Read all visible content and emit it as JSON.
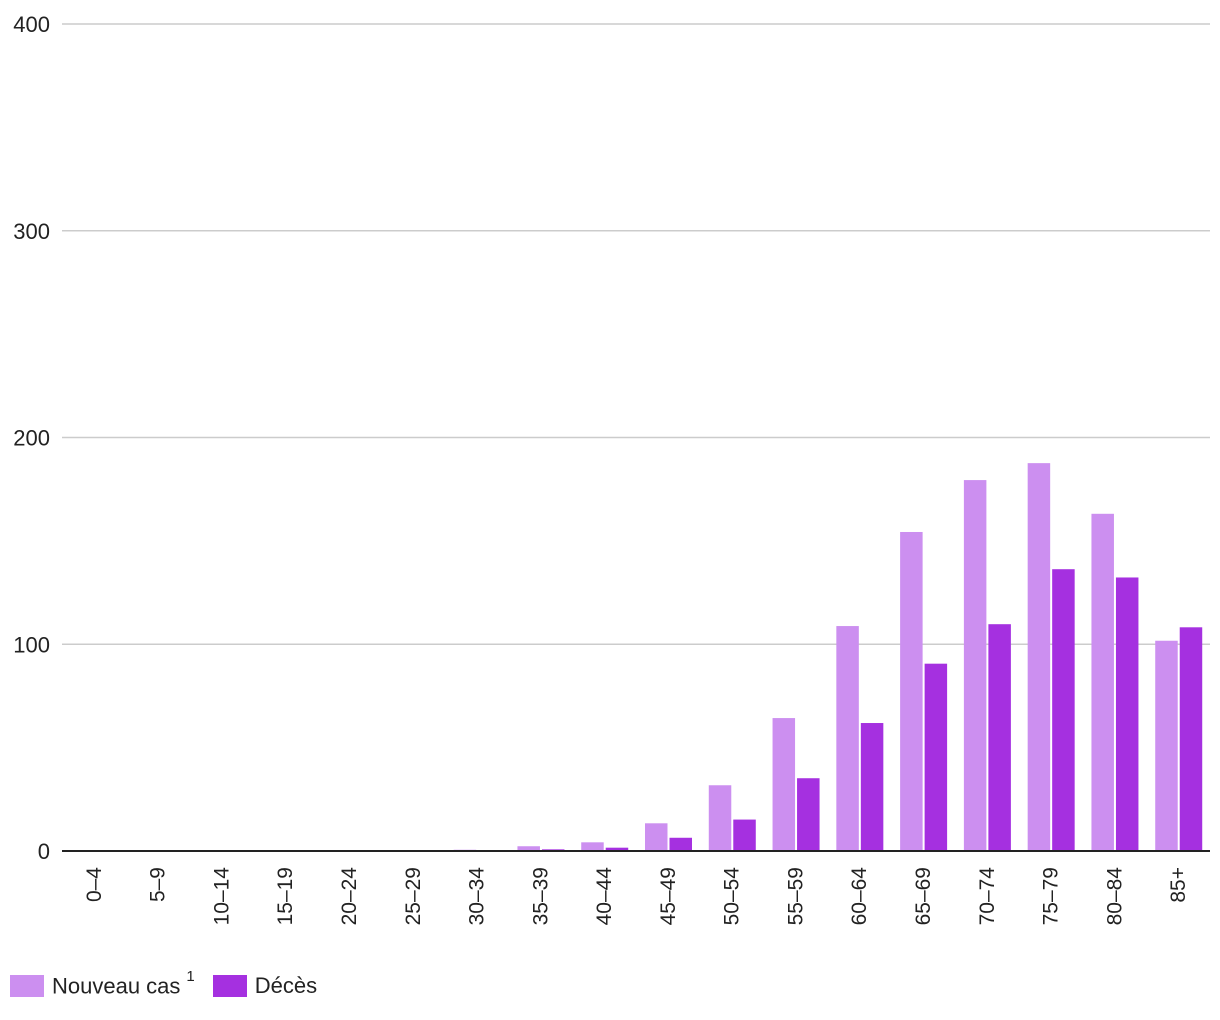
{
  "chart_data": {
    "type": "bar",
    "categories": [
      "0–4",
      "5–9",
      "10–14",
      "15–19",
      "20–24",
      "25–29",
      "30–34",
      "35–39",
      "40–44",
      "45–49",
      "50–54",
      "55–59",
      "60–64",
      "65–69",
      "70–74",
      "75–79",
      "80–84",
      "85+"
    ],
    "series": [
      {
        "name": "Nouveau cas",
        "name_superscript": "1",
        "color": "#cc8ff0",
        "values": [
          0,
          0,
          0,
          0,
          0,
          0.2,
          0.6,
          2.3,
          4.2,
          13.4,
          31.8,
          64.3,
          108.8,
          154.3,
          179.4,
          187.6,
          163.1,
          101.7
        ]
      },
      {
        "name": "Décès",
        "color": "#a530e0",
        "values": [
          0,
          0,
          0,
          0,
          0,
          0,
          0.1,
          0.8,
          1.6,
          6.4,
          15.2,
          35.2,
          61.9,
          90.6,
          109.7,
          136.3,
          132.3,
          108.2
        ]
      }
    ],
    "yticks": [
      0,
      100,
      200,
      300,
      400
    ],
    "ylim": [
      0,
      400
    ],
    "grid": true,
    "legend_position": "bottom-left",
    "title": "",
    "xlabel": "",
    "ylabel": ""
  }
}
